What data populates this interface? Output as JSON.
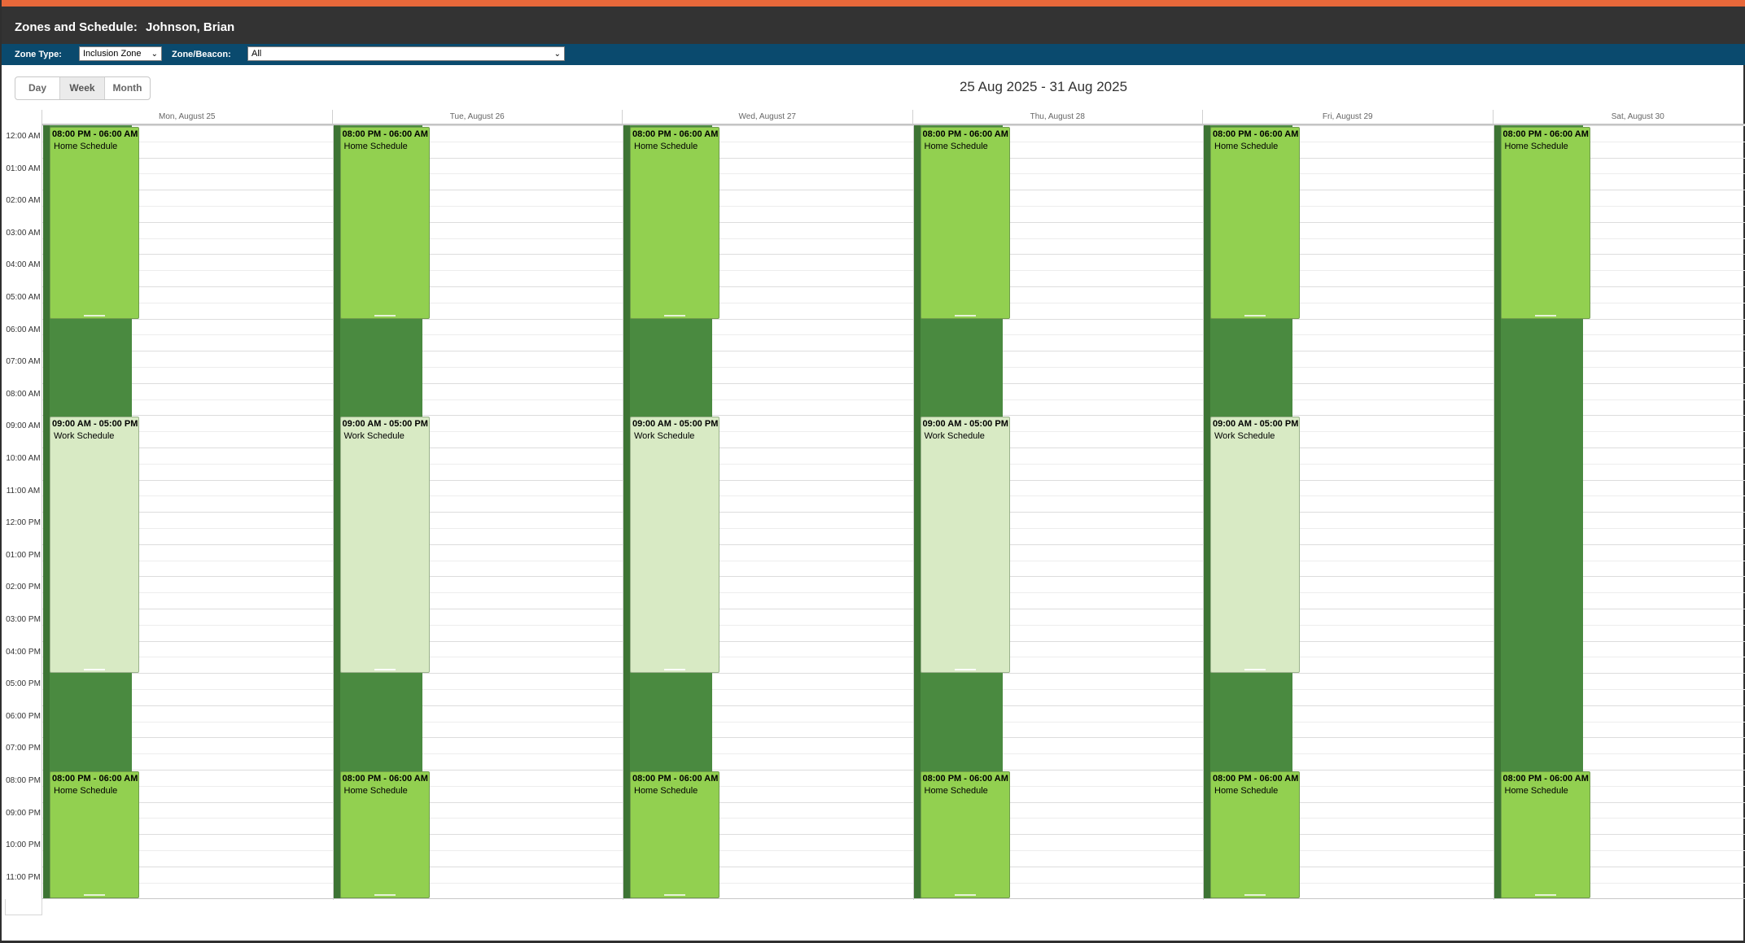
{
  "header": {
    "title": "Zones and Schedule:",
    "person": "Johnson, Brian"
  },
  "filters": {
    "zone_type_label": "Zone Type:",
    "zone_type_value": "Inclusion Zone",
    "zone_beacon_label": "Zone/Beacon:",
    "zone_beacon_value": "All"
  },
  "view_switch": {
    "day": "Day",
    "week": "Week",
    "month": "Month",
    "active": "week"
  },
  "date_range": "25 Aug 2025 - 31 Aug 2025",
  "days": [
    "Mon, August 25",
    "Tue, August 26",
    "Wed, August 27",
    "Thu, August 28",
    "Fri, August 29",
    "Sat, August 30"
  ],
  "hours": [
    "12:00 AM",
    "01:00 AM",
    "02:00 AM",
    "03:00 AM",
    "04:00 AM",
    "05:00 AM",
    "06:00 AM",
    "07:00 AM",
    "08:00 AM",
    "09:00 AM",
    "10:00 AM",
    "11:00 AM",
    "12:00 PM",
    "01:00 PM",
    "02:00 PM",
    "03:00 PM",
    "04:00 PM",
    "05:00 PM",
    "06:00 PM",
    "07:00 PM",
    "08:00 PM",
    "09:00 PM",
    "10:00 PM",
    "11:00 PM"
  ],
  "events": [
    {
      "day": 0,
      "start_hour": 0,
      "end_hour": 6,
      "time": "08:00 PM - 06:00 AM",
      "name": "Home Schedule",
      "kind": "home"
    },
    {
      "day": 0,
      "start_hour": 9,
      "end_hour": 17,
      "time": "09:00 AM - 05:00 PM",
      "name": "Work Schedule",
      "kind": "work"
    },
    {
      "day": 0,
      "start_hour": 20,
      "end_hour": 24,
      "time": "08:00 PM - 06:00 AM",
      "name": "Home Schedule",
      "kind": "home"
    },
    {
      "day": 1,
      "start_hour": 0,
      "end_hour": 6,
      "time": "08:00 PM - 06:00 AM",
      "name": "Home Schedule",
      "kind": "home"
    },
    {
      "day": 1,
      "start_hour": 9,
      "end_hour": 17,
      "time": "09:00 AM - 05:00 PM",
      "name": "Work Schedule",
      "kind": "work"
    },
    {
      "day": 1,
      "start_hour": 20,
      "end_hour": 24,
      "time": "08:00 PM - 06:00 AM",
      "name": "Home Schedule",
      "kind": "home"
    },
    {
      "day": 2,
      "start_hour": 0,
      "end_hour": 6,
      "time": "08:00 PM - 06:00 AM",
      "name": "Home Schedule",
      "kind": "home"
    },
    {
      "day": 2,
      "start_hour": 9,
      "end_hour": 17,
      "time": "09:00 AM - 05:00 PM",
      "name": "Work Schedule",
      "kind": "work"
    },
    {
      "day": 2,
      "start_hour": 20,
      "end_hour": 24,
      "time": "08:00 PM - 06:00 AM",
      "name": "Home Schedule",
      "kind": "home"
    },
    {
      "day": 3,
      "start_hour": 0,
      "end_hour": 6,
      "time": "08:00 PM - 06:00 AM",
      "name": "Home Schedule",
      "kind": "home"
    },
    {
      "day": 3,
      "start_hour": 9,
      "end_hour": 17,
      "time": "09:00 AM - 05:00 PM",
      "name": "Work Schedule",
      "kind": "work"
    },
    {
      "day": 3,
      "start_hour": 20,
      "end_hour": 24,
      "time": "08:00 PM - 06:00 AM",
      "name": "Home Schedule",
      "kind": "home"
    },
    {
      "day": 4,
      "start_hour": 0,
      "end_hour": 6,
      "time": "08:00 PM - 06:00 AM",
      "name": "Home Schedule",
      "kind": "home"
    },
    {
      "day": 4,
      "start_hour": 9,
      "end_hour": 17,
      "time": "09:00 AM - 05:00 PM",
      "name": "Work Schedule",
      "kind": "work"
    },
    {
      "day": 4,
      "start_hour": 20,
      "end_hour": 24,
      "time": "08:00 PM - 06:00 AM",
      "name": "Home Schedule",
      "kind": "home"
    },
    {
      "day": 5,
      "start_hour": 0,
      "end_hour": 6,
      "time": "08:00 PM - 06:00 AM",
      "name": "Home Schedule",
      "kind": "home"
    },
    {
      "day": 5,
      "start_hour": 20,
      "end_hour": 24,
      "time": "08:00 PM - 06:00 AM",
      "name": "Home Schedule",
      "kind": "home"
    }
  ],
  "colors": {
    "accent": "#e8683a",
    "title_bar": "#333333",
    "filter_bar": "#0a4a6e",
    "zone_band": "#4a8a40",
    "home_event": "#92d050",
    "work_event": "#d8eac4"
  }
}
